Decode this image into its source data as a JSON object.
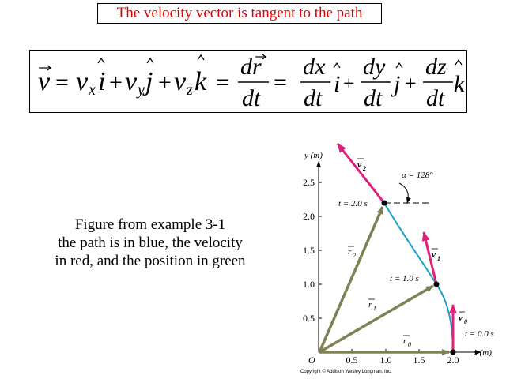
{
  "title": "The velocity vector is tangent to the path",
  "equation": {
    "lhs_v": "v",
    "eq": "=",
    "vx": "v",
    "sub_x": "x",
    "i": "i",
    "plus": "+",
    "vy": "v",
    "sub_y": "y",
    "j": "j",
    "vz": "v",
    "sub_z": "z",
    "k": "k",
    "d_r_num": "dr",
    "dt": "dt",
    "dx": "dx",
    "dy": "dy",
    "dz": "dz"
  },
  "caption": [
    "Figure from example 3-1",
    "the path is in blue, the velocity",
    "in red, and the position in green"
  ],
  "figure": {
    "y_axis_label": "y (m)",
    "x_axis_label": "x (m)",
    "origin_label": "O",
    "y_ticks": [
      "0.5",
      "1.0",
      "1.5",
      "2.0",
      "2.5"
    ],
    "x_ticks": [
      "0.5",
      "1.0",
      "1.5",
      "2.0"
    ],
    "angle_label": "α = 128°",
    "t0_label": "t = 0.0 s",
    "t1_label": "t = 1.0 s",
    "t2_label": "t = 2.0 s",
    "v0": "v",
    "v0_sub": "0",
    "v1": "v",
    "v1_sub": "1",
    "v2": "v",
    "v2_sub": "2",
    "r0": "r",
    "r0_sub": "0",
    "r1": "r",
    "r1_sub": "1",
    "r2": "r",
    "r2_sub": "2",
    "copyright": "Copyright © Addison Wesley Longman, Inc.",
    "colors": {
      "path": "#1aa0c8",
      "velocity": "#e0207a",
      "position": "#808055"
    }
  }
}
